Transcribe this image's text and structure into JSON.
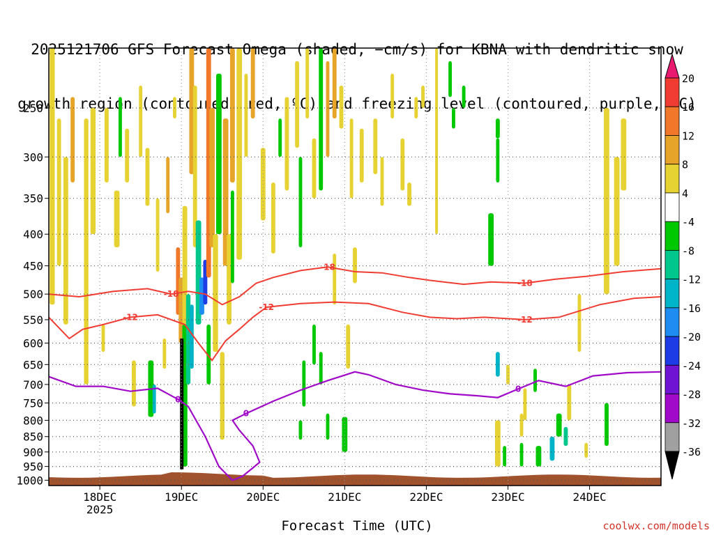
{
  "title_line1": "2025121706 GFS Forecast Omega (shaded, −cm/s) for KBNA with dendritic snow",
  "title_line2": "growth region (contoured, red, ºC) and freezing level (contoured, purple, ºC)",
  "xlabel": "Forecast Time (UTC)",
  "credit": "coolwx.com/models",
  "chart_data": {
    "type": "heatmap",
    "x_ticks": [
      {
        "label": "18DEC",
        "sub": "2025",
        "t": 21
      },
      {
        "label": "19DEC",
        "sub": "",
        "t": 45
      },
      {
        "label": "20DEC",
        "sub": "",
        "t": 69
      },
      {
        "label": "21DEC",
        "sub": "",
        "t": 93
      },
      {
        "label": "22DEC",
        "sub": "",
        "t": 117
      },
      {
        "label": "23DEC",
        "sub": "",
        "t": 141
      },
      {
        "label": "24DEC",
        "sub": "",
        "t": 165
      }
    ],
    "x_range_hours": [
      6,
      186
    ],
    "y_ticks": [
      250,
      300,
      350,
      400,
      450,
      500,
      550,
      600,
      650,
      700,
      750,
      800,
      850,
      900,
      950,
      1000
    ],
    "y_range_hpa": [
      200,
      1020
    ],
    "y_scale": "log-pressure",
    "colorbar": {
      "labels": [
        "20",
        "16",
        "12",
        "8",
        "4",
        "-4",
        "-8",
        "-12",
        "-16",
        "-20",
        "-24",
        "-28",
        "-32",
        "-36"
      ],
      "colors": [
        "#e8196e",
        "#f03c32",
        "#f07828",
        "#e6a529",
        "#e6d232",
        "#ffffff",
        "#00c800",
        "#00c88c",
        "#00b4c8",
        "#1e8cf0",
        "#1e3ce6",
        "#6e14d2",
        "#a00ac8",
        "#a0a0a0",
        "#000000"
      ]
    },
    "dgz_contours": [
      {
        "label": "-18",
        "color": "#f03c32",
        "points": [
          [
            6,
            500
          ],
          [
            15,
            505
          ],
          [
            25,
            495
          ],
          [
            35,
            490
          ],
          [
            42,
            500
          ],
          [
            47,
            495
          ],
          [
            52,
            500
          ],
          [
            57,
            520
          ],
          [
            62,
            505
          ],
          [
            67,
            480
          ],
          [
            72,
            470
          ],
          [
            80,
            458
          ],
          [
            88,
            452
          ],
          [
            96,
            460
          ],
          [
            104,
            462
          ],
          [
            112,
            470
          ],
          [
            118,
            475
          ],
          [
            128,
            482
          ],
          [
            136,
            478
          ],
          [
            146,
            480
          ],
          [
            155,
            473
          ],
          [
            164,
            468
          ],
          [
            175,
            460
          ],
          [
            186,
            455
          ]
        ]
      },
      {
        "label": "-12",
        "color": "#f03c32",
        "points": [
          [
            6,
            545
          ],
          [
            12,
            590
          ],
          [
            16,
            570
          ],
          [
            22,
            560
          ],
          [
            30,
            545
          ],
          [
            38,
            540
          ],
          [
            46,
            560
          ],
          [
            50,
            600
          ],
          [
            54,
            640
          ],
          [
            58,
            595
          ],
          [
            62,
            570
          ],
          [
            66,
            545
          ],
          [
            70,
            525
          ],
          [
            80,
            518
          ],
          [
            90,
            515
          ],
          [
            100,
            518
          ],
          [
            110,
            535
          ],
          [
            118,
            545
          ],
          [
            126,
            548
          ],
          [
            134,
            545
          ],
          [
            146,
            550
          ],
          [
            156,
            545
          ],
          [
            168,
            520
          ],
          [
            178,
            508
          ],
          [
            186,
            505
          ]
        ]
      }
    ],
    "freezing_contour": {
      "label": "0",
      "color": "#a00ac8",
      "points": [
        [
          6,
          680
        ],
        [
          14,
          705
        ],
        [
          22,
          705
        ],
        [
          30,
          718
        ],
        [
          38,
          710
        ],
        [
          44,
          740
        ],
        [
          47,
          760
        ],
        [
          52,
          850
        ],
        [
          56,
          950
        ],
        [
          60,
          1000
        ],
        [
          63,
          985
        ],
        [
          66,
          955
        ],
        [
          68,
          935
        ],
        [
          66,
          880
        ],
        [
          62,
          830
        ],
        [
          60,
          800
        ],
        [
          64,
          780
        ],
        [
          72,
          745
        ],
        [
          80,
          715
        ],
        [
          88,
          690
        ],
        [
          96,
          668
        ],
        [
          100,
          675
        ],
        [
          108,
          700
        ],
        [
          116,
          715
        ],
        [
          124,
          725
        ],
        [
          132,
          730
        ],
        [
          138,
          735
        ],
        [
          144,
          712
        ],
        [
          150,
          690
        ],
        [
          158,
          705
        ],
        [
          166,
          678
        ],
        [
          176,
          670
        ],
        [
          186,
          668
        ]
      ]
    },
    "surface_label": "terrain (brown)",
    "omega_cells_note": "Omega shading: green/teal = ascent (negative cm/s), yellow/orange = descent"
  }
}
